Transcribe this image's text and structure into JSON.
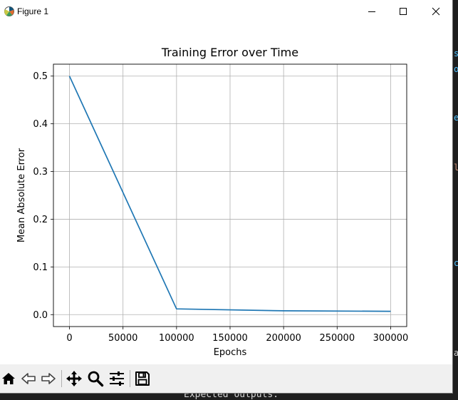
{
  "window": {
    "title": "Figure 1",
    "icons": {
      "app": "matplotlib-icon",
      "minimize": "minimize-icon",
      "maximize": "maximize-icon",
      "close": "close-icon"
    }
  },
  "background": {
    "bottom_text": "Expected outputs:",
    "right_edge_fragments": [
      "s",
      "ou",
      "e",
      "l",
      "ce",
      "al"
    ]
  },
  "chart_data": {
    "type": "line",
    "title": "Training Error over Time",
    "xlabel": "Epochs",
    "ylabel": "Mean Absolute Error",
    "xlim": [
      -15000,
      315000
    ],
    "ylim": [
      -0.025,
      0.525
    ],
    "xticks": [
      0,
      50000,
      100000,
      150000,
      200000,
      250000,
      300000
    ],
    "xtick_labels": [
      "0",
      "50000",
      "100000",
      "150000",
      "200000",
      "250000",
      "300000"
    ],
    "yticks": [
      0.0,
      0.1,
      0.2,
      0.3,
      0.4,
      0.5
    ],
    "ytick_labels": [
      "0.0",
      "0.1",
      "0.2",
      "0.3",
      "0.4",
      "0.5"
    ],
    "grid": true,
    "line_color": "#1f77b4",
    "series": [
      {
        "x": [
          0,
          100000,
          200000,
          300000
        ],
        "y": [
          0.5,
          0.012,
          0.008,
          0.007
        ]
      }
    ]
  },
  "toolbar": {
    "buttons": [
      {
        "name": "home-button",
        "icon": "home-icon"
      },
      {
        "name": "back-button",
        "icon": "back-arrow-icon"
      },
      {
        "name": "forward-button",
        "icon": "forward-arrow-icon"
      },
      {
        "name": "pan-button",
        "icon": "move-icon"
      },
      {
        "name": "zoom-button",
        "icon": "magnifier-icon"
      },
      {
        "name": "configure-subplots-button",
        "icon": "sliders-icon"
      },
      {
        "name": "save-button",
        "icon": "floppy-icon"
      }
    ]
  }
}
